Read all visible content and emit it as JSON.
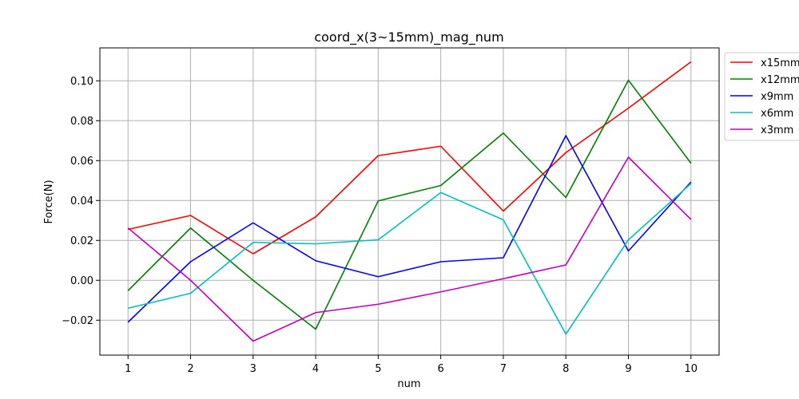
{
  "chart_data": {
    "type": "line",
    "title": "coord_x(3~15mm)_mag_num",
    "xlabel": "num",
    "ylabel": "Force(N)",
    "x": [
      1,
      2,
      3,
      4,
      5,
      6,
      7,
      8,
      9,
      10
    ],
    "x_ticks": [
      1,
      2,
      3,
      4,
      5,
      6,
      7,
      8,
      9,
      10
    ],
    "y_ticks": [
      -0.02,
      0.0,
      0.02,
      0.04,
      0.06,
      0.08,
      0.1
    ],
    "xlim": [
      0.55,
      10.45
    ],
    "ylim": [
      -0.0375,
      0.1165
    ],
    "grid": true,
    "legend_position": "top-right, outside plot area",
    "series": [
      {
        "name": "x15mm",
        "color": "#ff0000",
        "values": [
          0.0255,
          0.0325,
          0.0133,
          0.0318,
          0.0625,
          0.0672,
          0.0347,
          0.064,
          0.0863,
          0.1095
        ]
      },
      {
        "name": "x12mm",
        "color": "#008000",
        "values": [
          -0.0052,
          0.0262,
          0.0,
          -0.0245,
          0.0398,
          0.0475,
          0.0738,
          0.0415,
          0.1003,
          0.0587
        ]
      },
      {
        "name": "x9mm",
        "color": "#0000ff",
        "values": [
          -0.021,
          0.0093,
          0.0288,
          0.0098,
          0.0018,
          0.0093,
          0.0113,
          0.0725,
          0.0147,
          0.0493
        ]
      },
      {
        "name": "x6mm",
        "color": "#00bfbf",
        "values": [
          -0.014,
          -0.0065,
          0.019,
          0.0183,
          0.0203,
          0.044,
          0.0303,
          -0.027,
          0.0203,
          0.0485
        ]
      },
      {
        "name": "x3mm",
        "color": "#bf00bf",
        "values": [
          0.0262,
          0.0,
          -0.0305,
          -0.0162,
          -0.012,
          -0.0058,
          0.0008,
          0.0077,
          0.0617,
          0.0305
        ]
      }
    ]
  }
}
